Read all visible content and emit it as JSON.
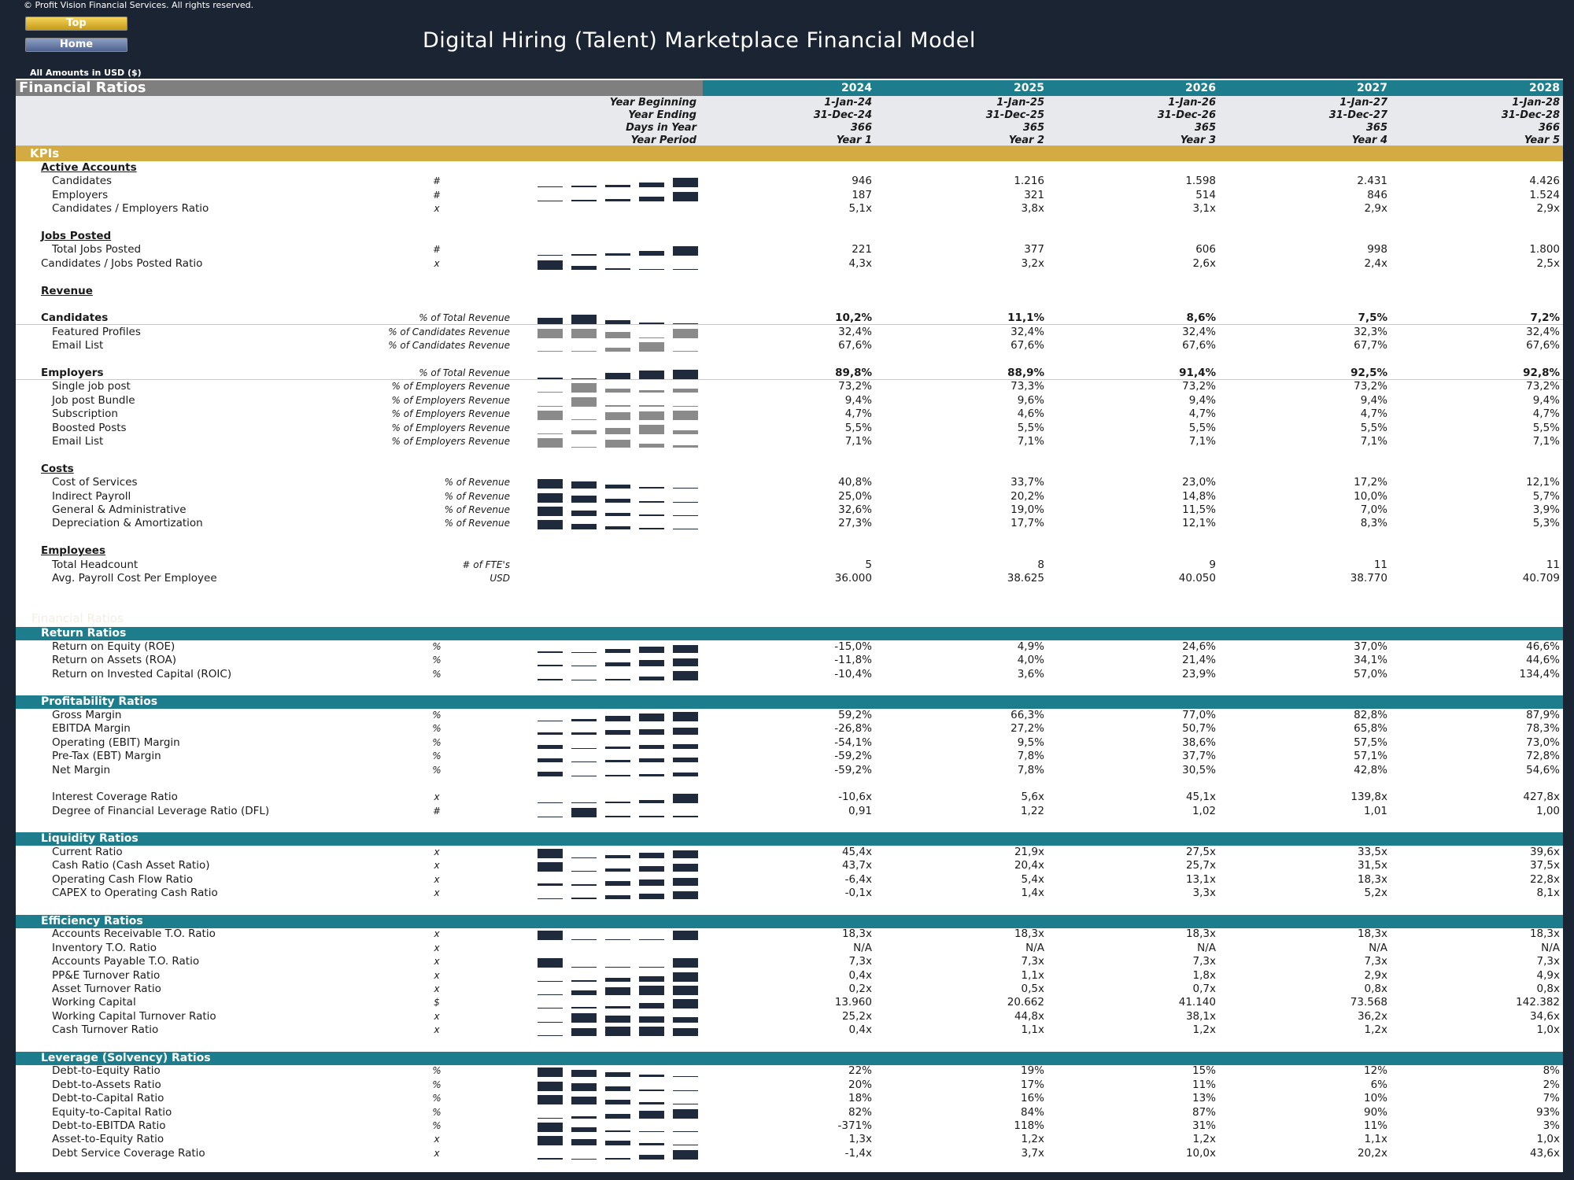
{
  "header": {
    "copyright": "© Profit Vision Financial Services. All rights reserved.",
    "top_button": "Top",
    "home_button": "Home",
    "title": "Digital Hiring (Talent) Marketplace Financial Model",
    "amounts": "All Amounts in  USD ($)"
  },
  "table": {
    "title": "Financial Ratios",
    "years": [
      "2024",
      "2025",
      "2026",
      "2027",
      "2028"
    ],
    "info_rows": [
      {
        "label": "Year Beginning",
        "values": [
          "1-Jan-24",
          "1-Jan-25",
          "1-Jan-26",
          "1-Jan-27",
          "1-Jan-28"
        ]
      },
      {
        "label": "Year Ending",
        "values": [
          "31-Dec-24",
          "31-Dec-25",
          "31-Dec-26",
          "31-Dec-27",
          "31-Dec-28"
        ]
      },
      {
        "label": "Days in Year",
        "values": [
          "366",
          "365",
          "365",
          "365",
          "366"
        ]
      },
      {
        "label": "Year Period",
        "values": [
          "Year 1",
          "Year 2",
          "Year 3",
          "Year 4",
          "Year 5"
        ]
      }
    ],
    "kpi_label": "KPIs",
    "ghost_text": "Financial Ratios"
  },
  "colors": {
    "dark": "#1b2432",
    "teal": "#1d7d8c",
    "gold": "#d4ab43",
    "gray_bar": "#7f7f7f",
    "spark": "#1f2a3c"
  },
  "rows": [
    {
      "t": "head",
      "label": "Active Accounts"
    },
    {
      "label": "Candidates",
      "unit": "#",
      "uc": true,
      "values": [
        "946",
        "1.216",
        "1.598",
        "2.431",
        "4.426"
      ],
      "spark": [
        0.05,
        0.1,
        0.2,
        0.4,
        0.75
      ]
    },
    {
      "label": "Employers",
      "unit": "#",
      "uc": true,
      "values": [
        "187",
        "321",
        "514",
        "846",
        "1.524"
      ],
      "spark": [
        0.05,
        0.1,
        0.2,
        0.4,
        0.75
      ]
    },
    {
      "label": "Candidates / Employers Ratio",
      "unit": "x",
      "uc": true,
      "values": [
        "5,1x",
        "3,8x",
        "3,1x",
        "2,9x",
        "2,9x"
      ]
    },
    {
      "t": "gap"
    },
    {
      "t": "head",
      "label": "Jobs Posted"
    },
    {
      "label": "Total Jobs Posted",
      "unit": "#",
      "uc": true,
      "values": [
        "221",
        "377",
        "606",
        "998",
        "1.800"
      ],
      "spark": [
        0.05,
        0.1,
        0.2,
        0.4,
        0.75
      ]
    },
    {
      "label": "Candidates / Jobs Posted Ratio",
      "unit": "x",
      "uc": true,
      "l0": true,
      "values": [
        "4,3x",
        "3,2x",
        "2,6x",
        "2,4x",
        "2,5x"
      ],
      "spark": [
        0.75,
        0.3,
        0.1,
        0.05,
        0.05
      ]
    },
    {
      "t": "gap"
    },
    {
      "t": "head",
      "label": "Revenue"
    },
    {
      "t": "gap"
    },
    {
      "label": "Candidates",
      "unit": "% of Total Revenue",
      "bold": true,
      "l0": true,
      "values": [
        "10,2%",
        "11,1%",
        "8,6%",
        "7,5%",
        "7,2%"
      ],
      "spark": [
        0.5,
        0.75,
        0.3,
        0.1,
        0.05
      ]
    },
    {
      "label": "Featured Profiles",
      "unit": "% of Candidates Revenue",
      "values": [
        "32,4%",
        "32,4%",
        "32,4%",
        "32,3%",
        "32,4%"
      ],
      "spark": [
        0.75,
        0.75,
        0.5,
        0.05,
        0.75
      ],
      "gray": true
    },
    {
      "label": "Email List",
      "unit": "% of Candidates Revenue",
      "values": [
        "67,6%",
        "67,6%",
        "67,6%",
        "67,7%",
        "67,6%"
      ],
      "spark": [
        0.05,
        0.05,
        0.3,
        0.75,
        0.05
      ],
      "gray": true
    },
    {
      "t": "gap"
    },
    {
      "label": "Employers",
      "unit": "% of Total Revenue",
      "bold": true,
      "l0": true,
      "values": [
        "89,8%",
        "88,9%",
        "91,4%",
        "92,5%",
        "92,8%"
      ],
      "spark": [
        0.1,
        0.05,
        0.5,
        0.7,
        0.75
      ]
    },
    {
      "label": "Single job post",
      "unit": "% of Employers Revenue",
      "values": [
        "73,2%",
        "73,3%",
        "73,2%",
        "73,2%",
        "73,2%"
      ],
      "spark": [
        0.05,
        0.75,
        0.3,
        0.2,
        0.3
      ],
      "gray": true
    },
    {
      "label": "Job post Bundle",
      "unit": "% of Employers Revenue",
      "values": [
        "9,4%",
        "9,6%",
        "9,4%",
        "9,4%",
        "9,4%"
      ],
      "spark": [
        0.05,
        0.75,
        0.1,
        0.1,
        0.05
      ],
      "gray": true
    },
    {
      "label": "Subscription",
      "unit": "% of Employers Revenue",
      "values": [
        "4,7%",
        "4,6%",
        "4,7%",
        "4,7%",
        "4,7%"
      ],
      "spark": [
        0.75,
        0.05,
        0.6,
        0.7,
        0.75
      ],
      "gray": true
    },
    {
      "label": "Boosted Posts",
      "unit": "% of Employers Revenue",
      "values": [
        "5,5%",
        "5,5%",
        "5,5%",
        "5,5%",
        "5,5%"
      ],
      "spark": [
        0.05,
        0.3,
        0.5,
        0.75,
        0.3
      ],
      "gray": true
    },
    {
      "label": "Email List",
      "unit": "% of Employers Revenue",
      "values": [
        "7,1%",
        "7,1%",
        "7,1%",
        "7,1%",
        "7,1%"
      ],
      "spark": [
        0.75,
        0.05,
        0.6,
        0.3,
        0.2
      ],
      "gray": true
    },
    {
      "t": "gap"
    },
    {
      "t": "head",
      "label": "Costs"
    },
    {
      "label": "Cost of Services",
      "unit": "% of Revenue",
      "values": [
        "40,8%",
        "33,7%",
        "23,0%",
        "17,2%",
        "12,1%"
      ],
      "spark": [
        0.75,
        0.55,
        0.3,
        0.1,
        0.05
      ]
    },
    {
      "label": "Indirect Payroll",
      "unit": "% of Revenue",
      "values": [
        "25,0%",
        "20,2%",
        "14,8%",
        "10,0%",
        "5,7%"
      ],
      "spark": [
        0.75,
        0.55,
        0.3,
        0.1,
        0.05
      ]
    },
    {
      "label": "General & Administrative",
      "unit": "% of Revenue",
      "values": [
        "32,6%",
        "19,0%",
        "11,5%",
        "7,0%",
        "3,9%"
      ],
      "spark": [
        0.75,
        0.45,
        0.25,
        0.1,
        0.05
      ]
    },
    {
      "label": "Depreciation & Amortization",
      "unit": "% of Revenue",
      "values": [
        "27,3%",
        "17,7%",
        "12,1%",
        "8,3%",
        "5,3%"
      ],
      "spark": [
        0.75,
        0.45,
        0.25,
        0.1,
        0.05
      ]
    },
    {
      "t": "gap"
    },
    {
      "t": "head",
      "label": "Employees"
    },
    {
      "label": "Total Headcount",
      "unit": "# of FTE's",
      "values": [
        "5",
        "8",
        "9",
        "11",
        "11"
      ]
    },
    {
      "label": "Avg. Payroll Cost Per Employee",
      "unit": "USD",
      "values": [
        "36.000",
        "38.625",
        "40.050",
        "38.770",
        "40.709"
      ]
    },
    {
      "t": "gap"
    },
    {
      "t": "gap"
    },
    {
      "t": "gap"
    },
    {
      "t": "sect",
      "label": "Return Ratios"
    },
    {
      "label": "Return on Equity (ROE)",
      "unit": "%",
      "uc": true,
      "values": [
        "-15,0%",
        "4,9%",
        "24,6%",
        "37,0%",
        "46,6%"
      ],
      "spark": [
        0.15,
        0.05,
        0.3,
        0.5,
        0.6
      ]
    },
    {
      "label": "Return on Assets (ROA)",
      "unit": "%",
      "uc": true,
      "values": [
        "-11,8%",
        "4,0%",
        "21,4%",
        "34,1%",
        "44,6%"
      ],
      "spark": [
        0.15,
        0.05,
        0.3,
        0.5,
        0.6
      ]
    },
    {
      "label": "Return on Invested Capital (ROIC)",
      "unit": "%",
      "uc": true,
      "values": [
        "-10,4%",
        "3,6%",
        "23,9%",
        "57,0%",
        "134,4%"
      ],
      "spark": [
        0.1,
        0.05,
        0.15,
        0.3,
        0.75
      ]
    },
    {
      "t": "gap"
    },
    {
      "t": "sect",
      "label": "Profitability Ratios"
    },
    {
      "label": "Gross Margin",
      "unit": "%",
      "uc": true,
      "values": [
        "59,2%",
        "66,3%",
        "77,0%",
        "82,8%",
        "87,9%"
      ],
      "spark": [
        0.05,
        0.2,
        0.45,
        0.6,
        0.75
      ]
    },
    {
      "label": "EBITDA Margin",
      "unit": "%",
      "uc": true,
      "values": [
        "-26,8%",
        "27,2%",
        "50,7%",
        "65,8%",
        "78,3%"
      ],
      "spark": [
        0.2,
        0.2,
        0.35,
        0.45,
        0.55
      ]
    },
    {
      "label": "Operating (EBIT) Margin",
      "unit": "%",
      "uc": true,
      "values": [
        "-54,1%",
        "9,5%",
        "38,6%",
        "57,5%",
        "73,0%"
      ],
      "spark": [
        0.3,
        0.05,
        0.2,
        0.3,
        0.4
      ]
    },
    {
      "label": "Pre-Tax (EBT) Margin",
      "unit": "%",
      "uc": true,
      "values": [
        "-59,2%",
        "7,8%",
        "37,7%",
        "57,1%",
        "72,8%"
      ],
      "spark": [
        0.3,
        0.05,
        0.2,
        0.3,
        0.4
      ]
    },
    {
      "label": "Net Margin",
      "unit": "%",
      "uc": true,
      "values": [
        "-59,2%",
        "7,8%",
        "30,5%",
        "42,8%",
        "54,6%"
      ],
      "spark": [
        0.35,
        0.05,
        0.15,
        0.2,
        0.3
      ]
    },
    {
      "t": "gap"
    },
    {
      "label": "Interest Coverage Ratio",
      "unit": "x",
      "uc": true,
      "values": [
        "-10,6x",
        "5,6x",
        "45,1x",
        "139,8x",
        "427,8x"
      ],
      "spark": [
        0.05,
        0.05,
        0.1,
        0.25,
        0.75
      ]
    },
    {
      "label": "Degree of Financial Leverage Ratio (DFL)",
      "unit": "#",
      "uc": true,
      "values": [
        "0,91",
        "1,22",
        "1,02",
        "1,01",
        "1,00"
      ],
      "spark": [
        0.05,
        0.75,
        0.15,
        0.15,
        0.15
      ]
    },
    {
      "t": "gap"
    },
    {
      "t": "sect",
      "label": "Liquidity Ratios"
    },
    {
      "label": "Current Ratio",
      "unit": "x",
      "uc": true,
      "values": [
        "45,4x",
        "21,9x",
        "27,5x",
        "33,5x",
        "39,6x"
      ],
      "spark": [
        0.75,
        0.05,
        0.25,
        0.45,
        0.6
      ]
    },
    {
      "label": "Cash Ratio (Cash Asset Ratio)",
      "unit": "x",
      "uc": true,
      "values": [
        "43,7x",
        "20,4x",
        "25,7x",
        "31,5x",
        "37,5x"
      ],
      "spark": [
        0.75,
        0.05,
        0.25,
        0.45,
        0.6
      ]
    },
    {
      "label": "Operating Cash Flow Ratio",
      "unit": "x",
      "uc": true,
      "values": [
        "-6,4x",
        "5,4x",
        "13,1x",
        "18,3x",
        "22,8x"
      ],
      "spark": [
        0.2,
        0.15,
        0.35,
        0.5,
        0.6
      ]
    },
    {
      "label": "CAPEX to Operating Cash Ratio",
      "unit": "x",
      "uc": true,
      "values": [
        "-0,1x",
        "1,4x",
        "3,3x",
        "5,2x",
        "8,1x"
      ],
      "spark": [
        0.05,
        0.15,
        0.3,
        0.45,
        0.65
      ]
    },
    {
      "t": "gap"
    },
    {
      "t": "sect",
      "label": "Efficiency Ratios"
    },
    {
      "label": "Accounts Receivable T.O. Ratio",
      "unit": "x",
      "uc": true,
      "values": [
        "18,3x",
        "18,3x",
        "18,3x",
        "18,3x",
        "18,3x"
      ],
      "spark": [
        0.75,
        0.05,
        0.05,
        0.05,
        0.75
      ]
    },
    {
      "label": "Inventory T.O. Ratio",
      "unit": "x",
      "uc": true,
      "values": [
        "N/A",
        "N/A",
        "N/A",
        "N/A",
        "N/A"
      ]
    },
    {
      "label": "Accounts Payable T.O. Ratio",
      "unit": "x",
      "uc": true,
      "values": [
        "7,3x",
        "7,3x",
        "7,3x",
        "7,3x",
        "7,3x"
      ],
      "spark": [
        0.75,
        0.05,
        0.05,
        0.05,
        0.75
      ]
    },
    {
      "label": "PP&E Turnover Ratio",
      "unit": "x",
      "uc": true,
      "values": [
        "0,4x",
        "1,1x",
        "1,8x",
        "2,9x",
        "4,9x"
      ],
      "spark": [
        0.05,
        0.15,
        0.3,
        0.45,
        0.75
      ]
    },
    {
      "label": "Asset Turnover Ratio",
      "unit": "x",
      "uc": true,
      "values": [
        "0,2x",
        "0,5x",
        "0,7x",
        "0,8x",
        "0,8x"
      ],
      "spark": [
        0.05,
        0.35,
        0.6,
        0.75,
        0.75
      ]
    },
    {
      "label": "Working Capital",
      "unit": "$",
      "uc": true,
      "values": [
        "13.960",
        "20.662",
        "41.140",
        "73.568",
        "142.382"
      ],
      "spark": [
        0.05,
        0.1,
        0.2,
        0.45,
        0.75
      ]
    },
    {
      "label": "Working Capital Turnover Ratio",
      "unit": "x",
      "uc": true,
      "values": [
        "25,2x",
        "44,8x",
        "38,1x",
        "36,2x",
        "34,6x"
      ],
      "spark": [
        0.05,
        0.75,
        0.55,
        0.5,
        0.45
      ]
    },
    {
      "label": "Cash Turnover Ratio",
      "unit": "x",
      "uc": true,
      "values": [
        "0,4x",
        "1,1x",
        "1,2x",
        "1,2x",
        "1,0x"
      ],
      "spark": [
        0.05,
        0.6,
        0.75,
        0.75,
        0.6
      ]
    },
    {
      "t": "gap"
    },
    {
      "t": "sect",
      "label": "Leverage (Solvency) Ratios"
    },
    {
      "label": "Debt-to-Equity Ratio",
      "unit": "%",
      "uc": true,
      "values": [
        "22%",
        "19%",
        "15%",
        "12%",
        "8%"
      ],
      "spark": [
        0.75,
        0.55,
        0.35,
        0.2,
        0.05
      ]
    },
    {
      "label": "Debt-to-Assets Ratio",
      "unit": "%",
      "uc": true,
      "values": [
        "20%",
        "17%",
        "11%",
        "6%",
        "2%"
      ],
      "spark": [
        0.75,
        0.6,
        0.35,
        0.15,
        0.05
      ]
    },
    {
      "label": "Debt-to-Capital Ratio",
      "unit": "%",
      "uc": true,
      "values": [
        "18%",
        "16%",
        "13%",
        "10%",
        "7%"
      ],
      "spark": [
        0.75,
        0.6,
        0.4,
        0.2,
        0.05
      ]
    },
    {
      "label": "Equity-to-Capital Ratio",
      "unit": "%",
      "uc": true,
      "values": [
        "82%",
        "84%",
        "87%",
        "90%",
        "93%"
      ],
      "spark": [
        0.05,
        0.2,
        0.4,
        0.6,
        0.75
      ]
    },
    {
      "label": "Debt-to-EBITDA Ratio",
      "unit": "%",
      "uc": true,
      "values": [
        "-371%",
        "118%",
        "31%",
        "11%",
        "3%"
      ],
      "spark": [
        0.75,
        0.4,
        0.15,
        0.05,
        0.05
      ]
    },
    {
      "label": "Asset-to-Equity Ratio",
      "unit": "x",
      "uc": true,
      "values": [
        "1,3x",
        "1,2x",
        "1,2x",
        "1,1x",
        "1,0x"
      ],
      "spark": [
        0.75,
        0.5,
        0.4,
        0.2,
        0.05
      ]
    },
    {
      "label": "Debt Service Coverage Ratio",
      "unit": "x",
      "uc": true,
      "values": [
        "-1,4x",
        "3,7x",
        "10,0x",
        "20,2x",
        "43,6x"
      ],
      "spark": [
        0.1,
        0.05,
        0.15,
        0.35,
        0.75
      ]
    }
  ]
}
